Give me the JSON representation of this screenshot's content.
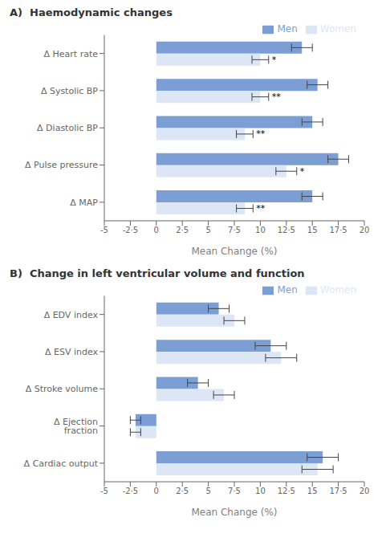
{
  "chart_data": [
    {
      "type": "bar",
      "orientation": "horizontal",
      "title": "A)  Haemodynamic changes",
      "categories": [
        "Δ Heart rate",
        "Δ Systolic BP",
        "Δ Diastolic BP",
        "Δ Pulse pressure",
        "Δ MAP"
      ],
      "series": [
        {
          "name": "Men",
          "color": "#7b9fd4",
          "values": [
            14.0,
            15.5,
            15.0,
            17.5,
            15.0
          ],
          "errors": [
            1.0,
            1.0,
            1.0,
            1.0,
            1.0
          ]
        },
        {
          "name": "Women",
          "color": "#dce6f5",
          "values": [
            10.0,
            10.0,
            8.5,
            12.5,
            8.5
          ],
          "errors": [
            0.8,
            0.8,
            0.8,
            1.0,
            0.8
          ],
          "annotations": [
            "*",
            "**",
            "**",
            "*",
            "**"
          ]
        }
      ],
      "xlabel": "Mean Change (%)",
      "xlim": [
        -5,
        20
      ],
      "xticks": [
        -5,
        {
          "value": -2.5,
          "label": "-2·5"
        },
        0,
        {
          "value": 2.5,
          "label": "2·5"
        },
        5,
        {
          "value": 7.5,
          "label": "7·5"
        },
        10,
        {
          "value": 12.5,
          "label": "12·5"
        },
        15,
        {
          "value": 17.5,
          "label": "17·5"
        },
        20
      ],
      "grid": false,
      "legend": "upper right"
    },
    {
      "type": "bar",
      "orientation": "horizontal",
      "title": "B)  Change in left ventricular volume and function",
      "categories": [
        "Δ EDV index",
        "Δ ESV index",
        "Δ Stroke volume",
        "Δ Ejection fraction",
        "Δ Cardiac output"
      ],
      "series": [
        {
          "name": "Men",
          "color": "#7b9fd4",
          "values": [
            6.0,
            11.0,
            4.0,
            -2.0,
            16.0
          ],
          "errors": [
            1.0,
            1.5,
            1.0,
            0.5,
            1.5
          ]
        },
        {
          "name": "Women",
          "color": "#dce6f5",
          "values": [
            7.5,
            12.0,
            6.5,
            -2.0,
            15.5
          ],
          "errors": [
            1.0,
            1.5,
            1.0,
            0.5,
            1.5
          ]
        }
      ],
      "xlabel": "Mean Change (%)",
      "xlim": [
        -5,
        20
      ],
      "xticks": [
        -5,
        {
          "value": -2.5,
          "label": "-2·5"
        },
        0,
        {
          "value": 2.5,
          "label": "2·5"
        },
        5,
        {
          "value": 7.5,
          "label": "7·5"
        },
        10,
        {
          "value": 12.5,
          "label": "12·5"
        },
        15,
        {
          "value": 17.5,
          "label": "17·5"
        },
        20
      ],
      "grid": false,
      "legend": "upper right"
    }
  ]
}
